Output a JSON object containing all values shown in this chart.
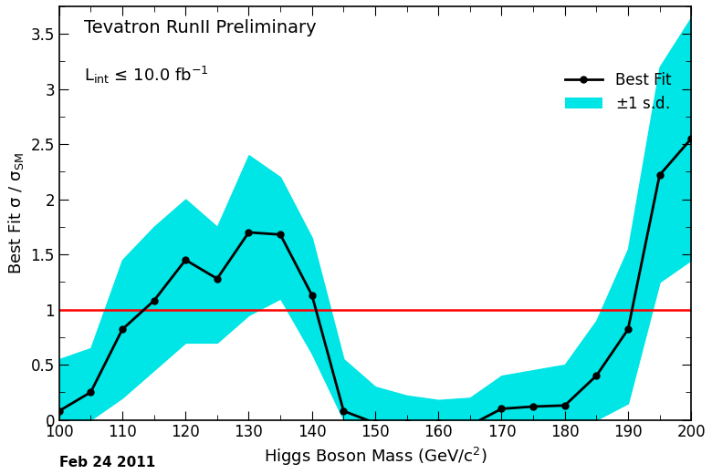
{
  "x": [
    100,
    105,
    110,
    115,
    120,
    125,
    130,
    135,
    140,
    145,
    150,
    155,
    160,
    165,
    170,
    175,
    180,
    185,
    190,
    195,
    200
  ],
  "best_fit": [
    0.08,
    0.25,
    0.82,
    1.08,
    1.45,
    1.28,
    1.7,
    1.68,
    1.13,
    0.08,
    -0.03,
    -0.03,
    -0.03,
    -0.05,
    0.1,
    0.12,
    0.13,
    0.4,
    0.82,
    2.22,
    2.55
  ],
  "band_upper": [
    0.55,
    0.65,
    1.45,
    1.75,
    2.0,
    1.75,
    2.4,
    2.2,
    1.65,
    0.55,
    0.3,
    0.22,
    0.18,
    0.2,
    0.4,
    0.45,
    0.5,
    0.9,
    1.55,
    3.2,
    3.65
  ],
  "band_lower": [
    0.0,
    0.0,
    0.2,
    0.45,
    0.7,
    0.7,
    0.95,
    1.1,
    0.6,
    0.0,
    0.0,
    0.0,
    0.0,
    0.0,
    0.0,
    0.0,
    0.0,
    0.0,
    0.15,
    1.25,
    1.45
  ],
  "title": "Tevatron RunII Preliminary",
  "lumi_text": "L$_{\\mathrm{int}}$ ≤ 10.0 fb$^{-1}$",
  "xlabel": "Higgs Boson Mass (GeV/c$^{2}$)",
  "ylabel": "Best Fit σ / σ$_{\\mathrm{SM}}$",
  "date_text": "Feb 24 2011",
  "xlim": [
    100,
    200
  ],
  "ylim": [
    0,
    3.75
  ],
  "yticks": [
    0,
    0.5,
    1,
    1.5,
    2,
    2.5,
    3,
    3.5
  ],
  "xticks": [
    100,
    110,
    120,
    130,
    140,
    150,
    160,
    170,
    180,
    190,
    200
  ],
  "band_color": "#00E5E5",
  "line_color": "#000000",
  "ref_line_color": "#FF0000",
  "background_color": "#FFFFFF",
  "title_fontsize": 14,
  "label_fontsize": 13,
  "tick_fontsize": 12
}
